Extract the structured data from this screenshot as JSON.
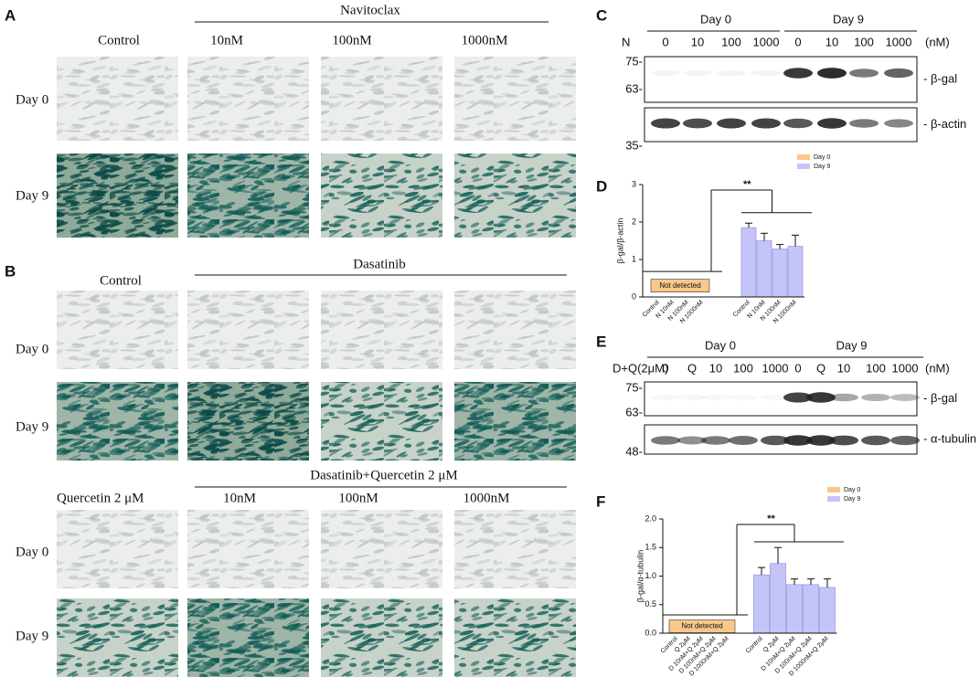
{
  "panel_a": {
    "label": "A",
    "treatment": "Navitoclax",
    "columns": [
      "Control",
      "10nM",
      "100nM",
      "1000nM"
    ],
    "rows": [
      "Day 0",
      "Day 9"
    ]
  },
  "panel_b": {
    "label": "B",
    "treatment": "Dasatinib",
    "columns": [
      "Control",
      "10nM",
      "100nM",
      "1000nM"
    ],
    "rows": [
      "Day 0",
      "Day 9"
    ],
    "treatment2": "Dasatinib+Quercetin 2 μM",
    "columns2": [
      "Quercetin  2 μM",
      "10nM",
      "100nM",
      "1000nM"
    ]
  },
  "panel_c": {
    "label": "C",
    "groups": [
      "Day 0",
      "Day 9"
    ],
    "lane_title": "N",
    "lanes": [
      "0",
      "10",
      "100",
      "1000"
    ],
    "unit": "(nM)",
    "markers": [
      "75-",
      "63-",
      "35-"
    ],
    "bands": [
      "- β-gal",
      "- β-actin"
    ]
  },
  "panel_e": {
    "label": "E",
    "groups": [
      "Day 0",
      "Day 9"
    ],
    "lane_title": "D+Q(2μM)",
    "lanes": [
      "0",
      "Q",
      "10",
      "100",
      "1000"
    ],
    "unit": "(nM)",
    "markers": [
      "75-",
      "63-",
      "48-"
    ],
    "bands": [
      "- β-gal",
      "- α-tubulin"
    ]
  },
  "chart_data": [
    {
      "type": "bar",
      "label": "D",
      "ylabel": "β-gal/β-actin",
      "categories": [
        "Control",
        "N 10nM",
        "N 100nM",
        "N 1000nM"
      ],
      "series": [
        {
          "name": "Day 0",
          "color": "#f8c88a",
          "values": [
            null,
            null,
            null,
            null
          ],
          "errors": [
            null,
            null,
            null,
            null
          ]
        },
        {
          "name": "Day 9",
          "color": "#c4c4f8",
          "values": [
            1.85,
            1.5,
            1.28,
            1.35
          ],
          "errors": [
            0.12,
            0.2,
            0.12,
            0.3
          ]
        }
      ],
      "ylim": [
        0,
        3
      ],
      "yticks": [
        0,
        1,
        2,
        3
      ],
      "annotations": [
        "Not detected",
        "**"
      ]
    },
    {
      "type": "bar",
      "label": "F",
      "ylabel": "β-gal/α-tubulin",
      "categories": [
        "Control",
        "Q 2μM",
        "D 10nM+Q 2μM",
        "D 100nM+Q 2μM",
        "D 1000nM+Q 2μM"
      ],
      "series": [
        {
          "name": "Day 0",
          "color": "#f8c88a",
          "values": [
            null,
            null,
            null,
            null,
            null
          ],
          "errors": [
            null,
            null,
            null,
            null,
            null
          ]
        },
        {
          "name": "Day 9",
          "color": "#c4c4f8",
          "values": [
            1.02,
            1.22,
            0.85,
            0.85,
            0.8
          ],
          "errors": [
            0.13,
            0.28,
            0.1,
            0.1,
            0.15
          ]
        }
      ],
      "ylim": [
        0,
        2
      ],
      "yticks": [
        {
          "value": 0,
          "label": "0.0"
        },
        {
          "value": 0.5,
          "label": "0.5"
        },
        {
          "value": 1,
          "label": "1.0"
        },
        {
          "value": 1.5,
          "label": "1.5"
        },
        {
          "value": 2,
          "label": "2.0"
        }
      ],
      "annotations": [
        "Not detected",
        "**"
      ]
    }
  ]
}
